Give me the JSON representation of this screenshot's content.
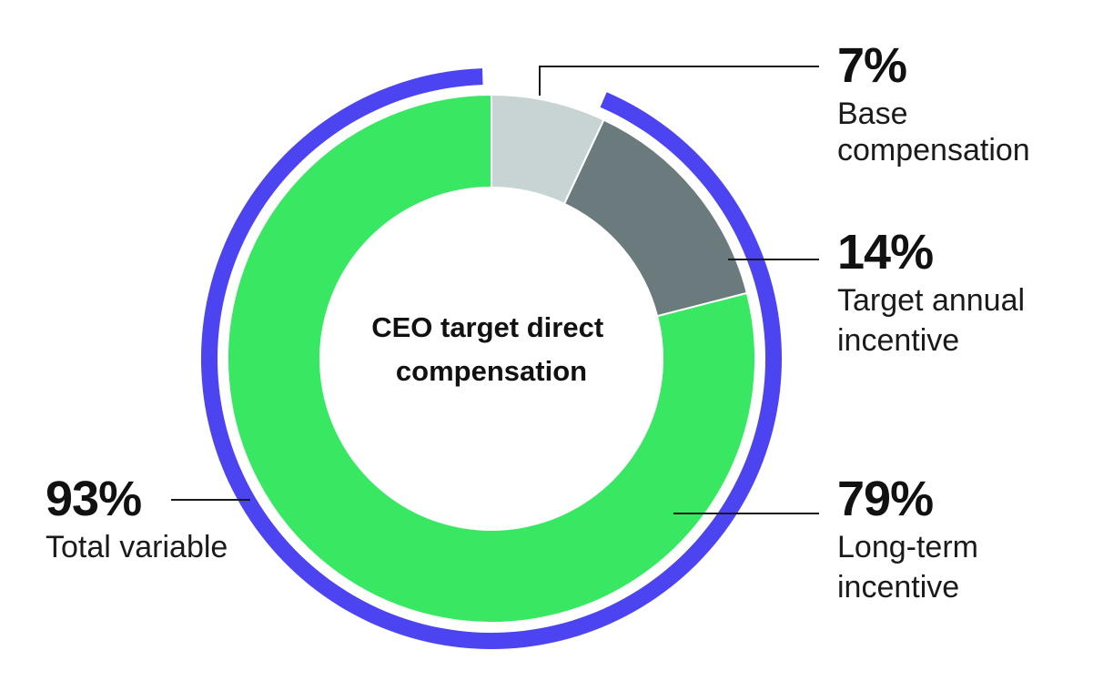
{
  "chart_data": {
    "type": "pie",
    "title": "CEO target direct compensation",
    "center_title_lines": [
      "CEO target direct",
      "compensation"
    ],
    "slices": [
      {
        "label_lines": [
          "Base",
          "compensation"
        ],
        "percent_label": "7%",
        "value": 7,
        "color": "#c8d3d4"
      },
      {
        "label_lines": [
          "Target annual",
          "incentive"
        ],
        "percent_label": "14%",
        "value": 14,
        "color": "#6b7a7d"
      },
      {
        "label_lines": [
          "Long-term",
          "incentive"
        ],
        "percent_label": "79%",
        "value": 79,
        "color": "#38e862"
      }
    ],
    "outer_arc": {
      "label_lines": [
        "Total variable"
      ],
      "percent_label": "93%",
      "value": 93,
      "color": "#4b44f0"
    }
  }
}
